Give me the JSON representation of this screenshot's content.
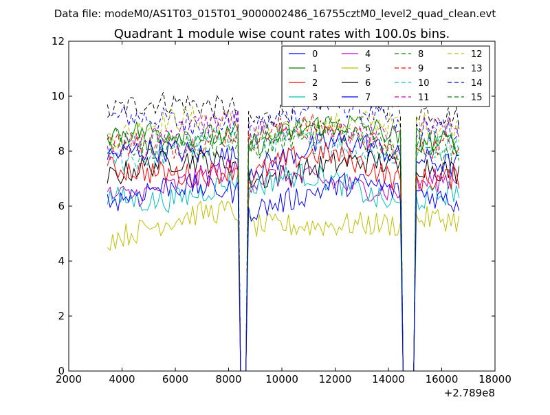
{
  "suptitle": "Data file: modeM0/AS1T03_015T01_9000002486_16755cztM0_level2_quad_clean.evt",
  "chart_data": {
    "type": "line",
    "title": "Quadrant 1 module wise count rates with 100.0s bins.",
    "xlabel": "",
    "ylabel": "",
    "x_offset_label": "+2.789e8",
    "xlim": [
      2000,
      18000
    ],
    "ylim": [
      0,
      12
    ],
    "xticks": [
      2000,
      4000,
      6000,
      8000,
      10000,
      12000,
      14000,
      16000,
      18000
    ],
    "yticks": [
      0,
      2,
      4,
      6,
      8,
      10,
      12
    ],
    "grid": false,
    "legend": {
      "position": "top-right",
      "columns": 4
    },
    "x_range": [
      3450,
      16700
    ],
    "bin_size": 100,
    "gaps": [
      [
        8400,
        8700
      ],
      [
        14500,
        15000
      ]
    ],
    "series": [
      {
        "name": "0",
        "color": "#0000ff",
        "dashed": false,
        "level": 6.1,
        "drift": 0.6
      },
      {
        "name": "1",
        "color": "#008000",
        "dashed": false,
        "level": 8.4,
        "drift": 0.4
      },
      {
        "name": "2",
        "color": "#ff0000",
        "dashed": false,
        "level": 7.1,
        "drift": 0.5
      },
      {
        "name": "3",
        "color": "#00bfbf",
        "dashed": false,
        "level": 6.3,
        "drift": 0.6
      },
      {
        "name": "4",
        "color": "#bf00bf",
        "dashed": false,
        "level": 6.6,
        "drift": 0.5
      },
      {
        "name": "5",
        "color": "#bfbf00",
        "dashed": false,
        "level": 5.1,
        "drift": 0.5
      },
      {
        "name": "6",
        "color": "#000000",
        "dashed": false,
        "level": 7.1,
        "drift": 0.5
      },
      {
        "name": "7",
        "color": "#0000ff",
        "dashed": false,
        "level": 7.6,
        "drift": 0.5
      },
      {
        "name": "8",
        "color": "#008000",
        "dashed": true,
        "level": 8.0,
        "drift": 0.4
      },
      {
        "name": "9",
        "color": "#ff0000",
        "dashed": true,
        "level": 8.2,
        "drift": 0.5
      },
      {
        "name": "10",
        "color": "#00bfbf",
        "dashed": true,
        "level": 7.9,
        "drift": 0.5
      },
      {
        "name": "11",
        "color": "#bf00bf",
        "dashed": true,
        "level": 8.4,
        "drift": 0.5
      },
      {
        "name": "12",
        "color": "#bfbf00",
        "dashed": true,
        "level": 8.6,
        "drift": 0.5
      },
      {
        "name": "13",
        "color": "#000000",
        "dashed": true,
        "level": 9.3,
        "drift": 0.5
      },
      {
        "name": "14",
        "color": "#0000ff",
        "dashed": true,
        "level": 8.9,
        "drift": 0.5
      },
      {
        "name": "15",
        "color": "#008000",
        "dashed": true,
        "level": 8.3,
        "drift": 0.4
      }
    ]
  }
}
